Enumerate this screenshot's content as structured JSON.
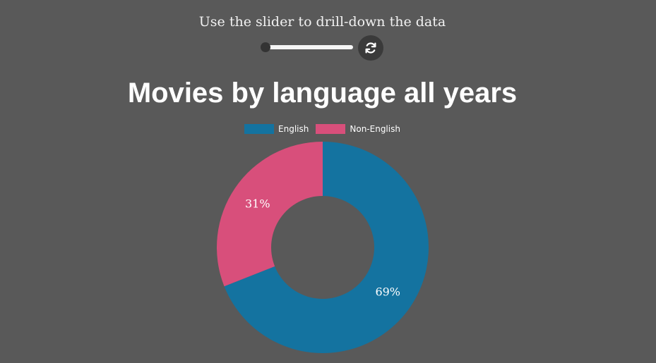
{
  "header": {
    "instruction": "Use the slider to drill-down the data",
    "slider_value": 0,
    "reset_icon": "refresh-icon"
  },
  "chart_data": {
    "type": "pie",
    "title": "Movies by language all years",
    "categories": [
      "English",
      "Non-English"
    ],
    "values": [
      69,
      31
    ],
    "unit": "%",
    "colors": [
      "#1473a0",
      "#d84f7b"
    ],
    "data_labels": [
      "69%",
      "31%"
    ],
    "legend_position": "top",
    "donut": true
  }
}
